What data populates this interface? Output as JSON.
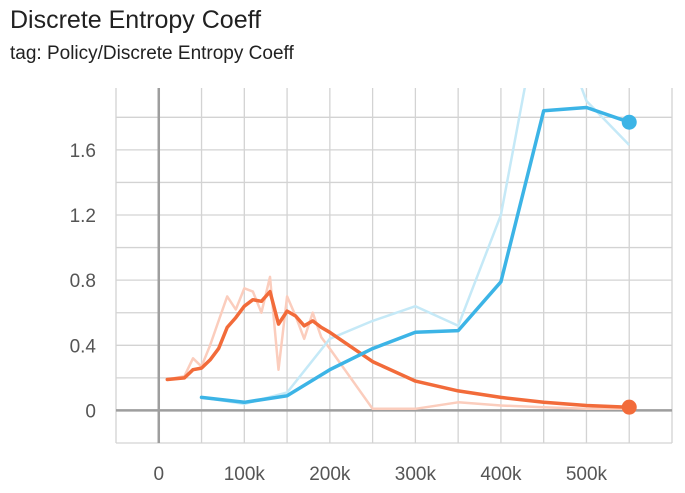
{
  "header": {
    "title": "Discrete Entropy Coeff",
    "tag": "tag: Policy/Discrete Entropy Coeff"
  },
  "chart_data": {
    "type": "line",
    "title": "Discrete Entropy Coeff",
    "subtitle": "tag: Policy/Discrete Entropy Coeff",
    "xlabel": "",
    "ylabel": "",
    "xlim": [
      -50000,
      600000
    ],
    "ylim": [
      -0.2,
      1.98
    ],
    "x_ticks": [
      0,
      100000,
      200000,
      300000,
      400000,
      500000
    ],
    "x_tick_labels": [
      "0",
      "100k",
      "200k",
      "300k",
      "400k",
      "500k"
    ],
    "y_ticks": [
      0,
      0.4,
      0.8,
      1.2,
      1.6
    ],
    "y_tick_labels": [
      "0",
      "0.4",
      "0.8",
      "1.2",
      "1.6"
    ],
    "grid": true,
    "colors": {
      "blue": "#3cb4e6",
      "blue_raw": "#c5e9f7",
      "orange": "#f26b3a",
      "orange_raw": "#fbcdbd",
      "grid": "#d3d3d3",
      "axis": "#9e9e9e"
    },
    "series": [
      {
        "color_key": "orange",
        "raw": {
          "x": [
            10000,
            30000,
            40000,
            50000,
            60000,
            70000,
            80000,
            90000,
            100000,
            110000,
            120000,
            130000,
            140000,
            150000,
            160000,
            170000,
            180000,
            190000,
            200000,
            250000,
            300000,
            350000,
            400000,
            450000,
            500000,
            550000
          ],
          "y": [
            0.19,
            0.21,
            0.32,
            0.27,
            0.4,
            0.55,
            0.7,
            0.62,
            0.75,
            0.73,
            0.6,
            0.82,
            0.25,
            0.7,
            0.58,
            0.44,
            0.6,
            0.45,
            0.38,
            0.01,
            0.01,
            0.05,
            0.03,
            0.02,
            0.01,
            0.01
          ]
        },
        "smoothed": {
          "x": [
            10000,
            30000,
            40000,
            50000,
            60000,
            70000,
            80000,
            90000,
            100000,
            110000,
            120000,
            130000,
            140000,
            150000,
            160000,
            170000,
            180000,
            190000,
            200000,
            250000,
            300000,
            350000,
            400000,
            450000,
            500000,
            550000
          ],
          "y": [
            0.19,
            0.2,
            0.25,
            0.26,
            0.31,
            0.38,
            0.51,
            0.57,
            0.64,
            0.68,
            0.67,
            0.73,
            0.53,
            0.61,
            0.58,
            0.52,
            0.55,
            0.51,
            0.48,
            0.3,
            0.18,
            0.12,
            0.08,
            0.05,
            0.03,
            0.02
          ]
        }
      },
      {
        "color_key": "blue",
        "raw": {
          "x": [
            50000,
            100000,
            150000,
            200000,
            250000,
            300000,
            350000,
            400000,
            450000,
            500000,
            550000
          ],
          "y": [
            0.08,
            0.04,
            0.11,
            0.44,
            0.55,
            0.64,
            0.52,
            1.2,
            2.6,
            1.9,
            1.63
          ]
        },
        "smoothed": {
          "x": [
            50000,
            100000,
            150000,
            200000,
            250000,
            300000,
            350000,
            400000,
            450000,
            500000,
            550000
          ],
          "y": [
            0.08,
            0.05,
            0.09,
            0.25,
            0.38,
            0.48,
            0.49,
            0.79,
            1.84,
            1.86,
            1.77
          ]
        }
      }
    ]
  }
}
